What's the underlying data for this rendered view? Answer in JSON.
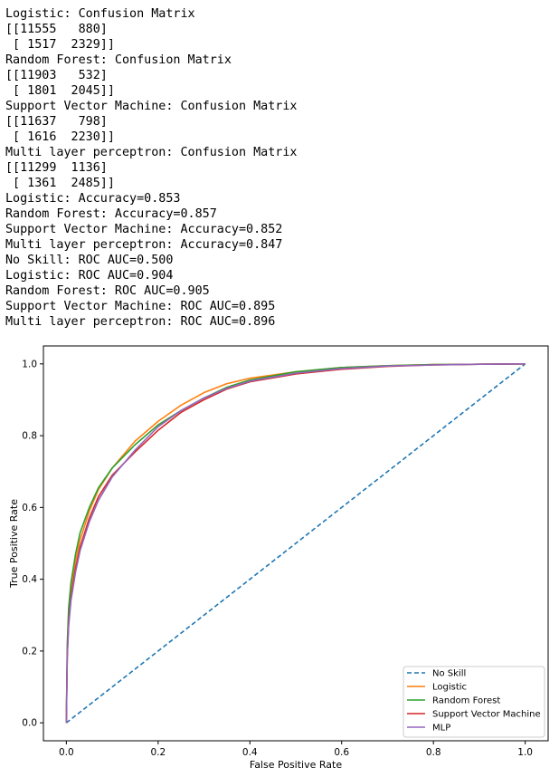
{
  "console_output": [
    "Logistic: Confusion Matrix",
    "[[11555   880]",
    " [ 1517  2329]]",
    "Random Forest: Confusion Matrix",
    "[[11903   532]",
    " [ 1801  2045]]",
    "Support Vector Machine: Confusion Matrix",
    "[[11637   798]",
    " [ 1616  2230]]",
    "Multi layer perceptron: Confusion Matrix",
    "[[11299  1136]",
    " [ 1361  2485]]",
    "Logistic: Accuracy=0.853",
    "Random Forest: Accuracy=0.857",
    "Support Vector Machine: Accuracy=0.852",
    "Multi layer perceptron: Accuracy=0.847",
    "No Skill: ROC AUC=0.500",
    "Logistic: ROC AUC=0.904",
    "Random Forest: ROC AUC=0.905",
    "Support Vector Machine: ROC AUC=0.895",
    "Multi layer perceptron: ROC AUC=0.896"
  ],
  "chart_data": {
    "type": "line",
    "title": "",
    "xlabel": "False Positive Rate",
    "ylabel": "True Positive Rate",
    "xlim": [
      -0.05,
      1.05
    ],
    "ylim": [
      -0.05,
      1.05
    ],
    "xticks": [
      "0.0",
      "0.2",
      "0.4",
      "0.6",
      "0.8",
      "1.0"
    ],
    "yticks": [
      "0.0",
      "0.2",
      "0.4",
      "0.6",
      "0.8",
      "1.0"
    ],
    "grid": false,
    "legend_position": "bottom-right",
    "series": [
      {
        "name": "No Skill",
        "color": "#1f77b4",
        "style": "dashed",
        "x": [
          0,
          1
        ],
        "y": [
          0,
          1
        ]
      },
      {
        "name": "Logistic",
        "color": "#ff7f0e",
        "style": "solid",
        "x": [
          0,
          0.002,
          0.005,
          0.01,
          0.02,
          0.03,
          0.05,
          0.07,
          0.1,
          0.15,
          0.2,
          0.25,
          0.3,
          0.35,
          0.4,
          0.5,
          0.6,
          0.7,
          0.8,
          0.9,
          1.0
        ],
        "y": [
          0,
          0.2,
          0.3,
          0.37,
          0.45,
          0.51,
          0.59,
          0.65,
          0.71,
          0.785,
          0.84,
          0.885,
          0.92,
          0.945,
          0.96,
          0.978,
          0.99,
          0.995,
          0.998,
          0.999,
          1.0
        ]
      },
      {
        "name": "Random Forest",
        "color": "#2ca02c",
        "style": "solid",
        "x": [
          0,
          0.002,
          0.005,
          0.01,
          0.02,
          0.03,
          0.05,
          0.07,
          0.1,
          0.15,
          0.2,
          0.25,
          0.3,
          0.35,
          0.4,
          0.5,
          0.6,
          0.7,
          0.8,
          0.9,
          1.0
        ],
        "y": [
          0,
          0.22,
          0.32,
          0.39,
          0.47,
          0.53,
          0.6,
          0.655,
          0.71,
          0.775,
          0.83,
          0.87,
          0.905,
          0.935,
          0.955,
          0.978,
          0.99,
          0.995,
          0.998,
          0.999,
          1.0
        ]
      },
      {
        "name": "Support Vector Machine",
        "color": "#d62728",
        "style": "solid",
        "x": [
          0,
          0.002,
          0.005,
          0.01,
          0.02,
          0.03,
          0.05,
          0.07,
          0.1,
          0.15,
          0.2,
          0.25,
          0.3,
          0.35,
          0.4,
          0.5,
          0.6,
          0.7,
          0.8,
          0.9,
          1.0
        ],
        "y": [
          0,
          0.19,
          0.28,
          0.35,
          0.43,
          0.49,
          0.57,
          0.63,
          0.69,
          0.755,
          0.815,
          0.865,
          0.9,
          0.93,
          0.95,
          0.972,
          0.985,
          0.993,
          0.997,
          0.999,
          1.0
        ]
      },
      {
        "name": "MLP",
        "color": "#9467bd",
        "style": "solid",
        "x": [
          0,
          0.002,
          0.005,
          0.01,
          0.02,
          0.03,
          0.05,
          0.07,
          0.1,
          0.15,
          0.2,
          0.25,
          0.3,
          0.35,
          0.4,
          0.5,
          0.6,
          0.7,
          0.8,
          0.9,
          1.0
        ],
        "y": [
          0,
          0.18,
          0.27,
          0.34,
          0.42,
          0.48,
          0.56,
          0.62,
          0.685,
          0.76,
          0.825,
          0.87,
          0.905,
          0.932,
          0.952,
          0.974,
          0.987,
          0.994,
          0.997,
          0.999,
          1.0
        ]
      }
    ]
  }
}
